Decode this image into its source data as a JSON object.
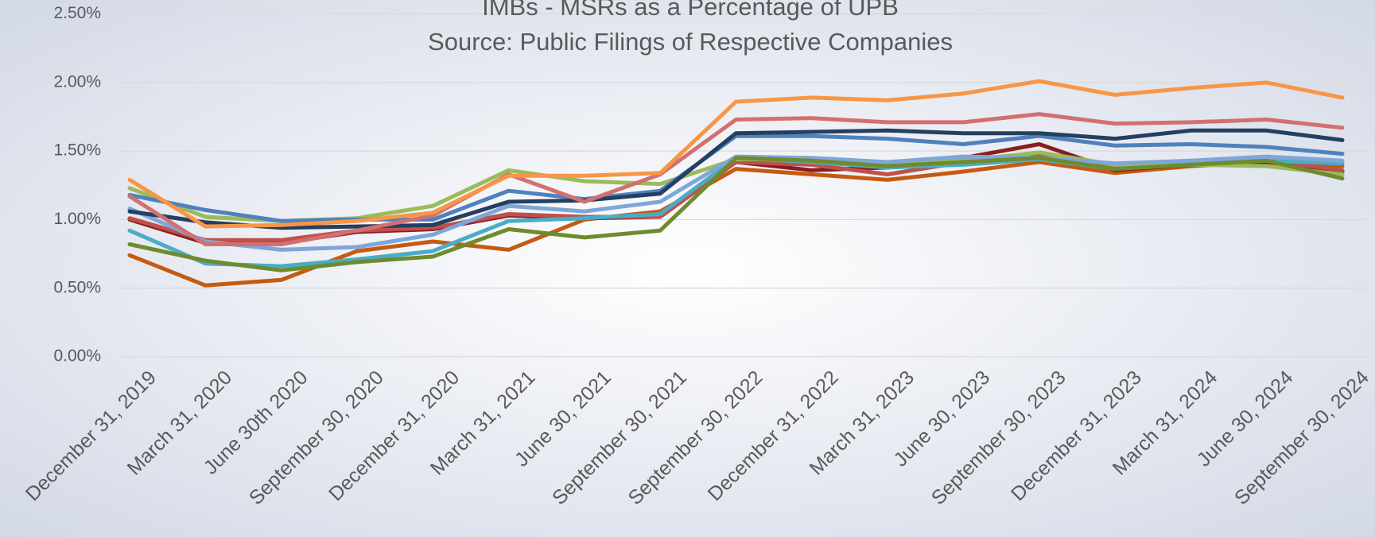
{
  "chart_data": {
    "type": "line",
    "title": "IMBs - MSRs as a Percentage of UPB",
    "subtitle": "Source:   Public Filings of Respective Companies",
    "categories": [
      "December 31, 2019",
      "March 31, 2020",
      "June 30th 2020",
      "September 30, 2020",
      "December 31, 2020",
      "March 31, 2021",
      "June 30, 2021",
      "September 30, 2021",
      "September 30, 2022",
      "December 31, 2022",
      "March 31, 2023",
      "June 30, 2023",
      "September 30, 2023",
      "December 31, 2023",
      "March 31, 2024",
      "June 30, 2024",
      "September 30, 2024"
    ],
    "ylim": [
      0,
      2.5
    ],
    "yticks": [
      {
        "value": 0,
        "label": "0.00%"
      },
      {
        "value": 0.5,
        "label": "0.50%"
      },
      {
        "value": 1,
        "label": "1.00%"
      },
      {
        "value": 1.5,
        "label": "1.50%"
      },
      {
        "value": 2,
        "label": "2.00%"
      },
      {
        "value": 2.5,
        "label": "2.50%"
      }
    ],
    "grid": true,
    "series": [
      {
        "color": "#c55a11",
        "values": [
          0.74,
          0.52,
          0.56,
          0.77,
          0.84,
          0.78,
          1.0,
          1.06,
          1.37,
          1.33,
          1.29,
          1.35,
          1.42,
          1.34,
          1.39,
          1.42,
          1.39
        ]
      },
      {
        "color": "#8b1e1e",
        "values": [
          1.0,
          0.83,
          0.83,
          0.91,
          0.93,
          1.03,
          1.01,
          1.02,
          1.42,
          1.36,
          1.38,
          1.45,
          1.55,
          1.36,
          1.4,
          1.42,
          1.35
        ]
      },
      {
        "color": "#c0504d",
        "values": [
          1.01,
          0.85,
          0.85,
          0.92,
          0.94,
          1.04,
          1.02,
          1.02,
          1.42,
          1.4,
          1.33,
          1.42,
          1.48,
          1.38,
          1.4,
          1.43,
          1.36
        ]
      },
      {
        "color": "#4bacc6",
        "values": [
          0.92,
          0.68,
          0.66,
          0.71,
          0.77,
          0.99,
          1.01,
          1.04,
          1.45,
          1.42,
          1.38,
          1.4,
          1.44,
          1.37,
          1.41,
          1.43,
          1.41
        ]
      },
      {
        "color": "#9bbb59",
        "values": [
          1.23,
          1.02,
          0.99,
          1.01,
          1.1,
          1.36,
          1.28,
          1.26,
          1.44,
          1.44,
          1.41,
          1.43,
          1.49,
          1.4,
          1.4,
          1.39,
          1.33
        ]
      },
      {
        "color": "#7ea6d8",
        "values": [
          1.08,
          0.84,
          0.78,
          0.8,
          0.89,
          1.1,
          1.06,
          1.13,
          1.46,
          1.45,
          1.42,
          1.46,
          1.45,
          1.41,
          1.43,
          1.46,
          1.43
        ]
      },
      {
        "color": "#4f81bd",
        "values": [
          1.18,
          1.07,
          0.99,
          1.0,
          1.0,
          1.21,
          1.15,
          1.21,
          1.61,
          1.61,
          1.59,
          1.55,
          1.61,
          1.54,
          1.55,
          1.53,
          1.48
        ]
      },
      {
        "color": "#243f60",
        "values": [
          1.06,
          0.98,
          0.94,
          0.95,
          0.96,
          1.13,
          1.14,
          1.19,
          1.63,
          1.64,
          1.65,
          1.63,
          1.63,
          1.59,
          1.65,
          1.65,
          1.58
        ]
      },
      {
        "color": "#d27070",
        "values": [
          1.17,
          0.82,
          0.82,
          0.92,
          1.03,
          1.33,
          1.13,
          1.33,
          1.73,
          1.74,
          1.71,
          1.71,
          1.77,
          1.7,
          1.71,
          1.73,
          1.67
        ]
      },
      {
        "color": "#f79646",
        "values": [
          1.29,
          0.95,
          0.96,
          0.99,
          1.05,
          1.32,
          1.32,
          1.34,
          1.86,
          1.89,
          1.87,
          1.92,
          2.01,
          1.91,
          1.96,
          2.0,
          1.89
        ]
      },
      {
        "color": "#6e8b2e",
        "values": [
          0.82,
          0.7,
          0.63,
          0.69,
          0.73,
          0.93,
          0.87,
          0.92,
          1.45,
          1.43,
          1.39,
          1.42,
          1.45,
          1.37,
          1.4,
          1.43,
          1.3
        ]
      }
    ]
  }
}
